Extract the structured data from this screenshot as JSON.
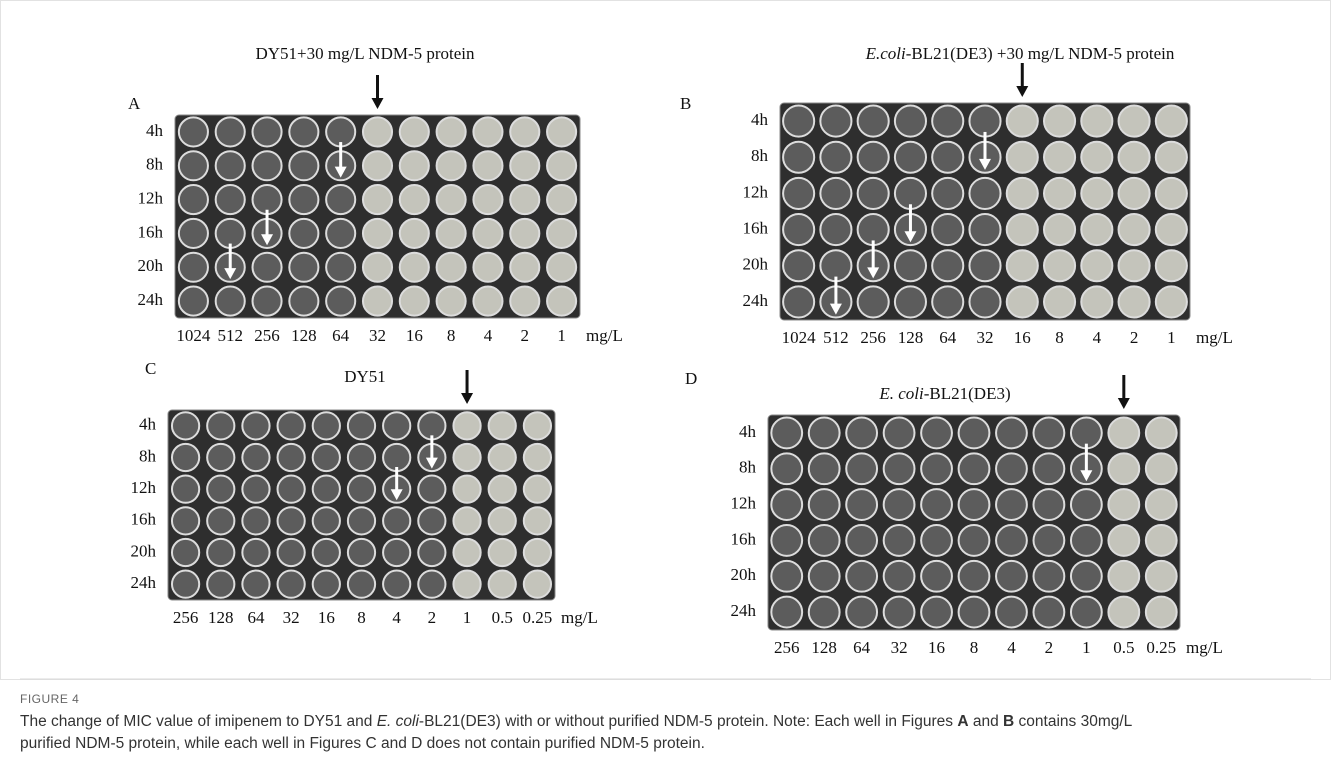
{
  "figure": {
    "panels": [
      {
        "label": "A",
        "title": [
          {
            "text": "DY51+30 mg/L NDM-5 protein"
          }
        ],
        "rows": [
          "4h",
          "8h",
          "12h",
          "16h",
          "20h",
          "24h"
        ],
        "columns": [
          "1024",
          "512",
          "256",
          "128",
          "64",
          "32",
          "16",
          "8",
          "4",
          "2",
          "1"
        ],
        "unit": "mg/L"
      },
      {
        "label": "B",
        "title": [
          {
            "text": "E.coli",
            "italic": true
          },
          {
            "text": "-BL21(DE3) +30 mg/L NDM-5 protein"
          }
        ],
        "rows": [
          "4h",
          "8h",
          "12h",
          "16h",
          "20h",
          "24h"
        ],
        "columns": [
          "1024",
          "512",
          "256",
          "128",
          "64",
          "32",
          "16",
          "8",
          "4",
          "2",
          "1"
        ],
        "unit": "mg/L"
      },
      {
        "label": "C",
        "title": [
          {
            "text": "DY51"
          }
        ],
        "rows": [
          "4h",
          "8h",
          "12h",
          "16h",
          "20h",
          "24h"
        ],
        "columns": [
          "256",
          "128",
          "64",
          "32",
          "16",
          "8",
          "4",
          "2",
          "1",
          "0.5",
          "0.25"
        ],
        "unit": "mg/L"
      },
      {
        "label": "D",
        "title": [
          {
            "text": "E. coli",
            "italic": true
          },
          {
            "text": "-BL21(DE3)"
          }
        ],
        "rows": [
          "4h",
          "8h",
          "12h",
          "16h",
          "20h",
          "24h"
        ],
        "columns": [
          "256",
          "128",
          "64",
          "32",
          "16",
          "8",
          "4",
          "2",
          "1",
          "0.5",
          "0.25"
        ],
        "unit": "mg/L"
      }
    ],
    "figure_label": "FIGURE 4",
    "caption": [
      {
        "text": "The change of MIC value of imipenem to DY51 and "
      },
      {
        "text": "E. coli",
        "italic": true
      },
      {
        "text": "-BL21(DE3) with or without purified NDM-5 protein. Note: Each well in Figures "
      },
      {
        "text": "A",
        "bold": true
      },
      {
        "text": " and "
      },
      {
        "text": "B",
        "bold": true
      },
      {
        "text": " contains 30mg/L purified NDM-5 protein, while each well in Figures C and D does not contain purified NDM-5 protein."
      }
    ]
  }
}
